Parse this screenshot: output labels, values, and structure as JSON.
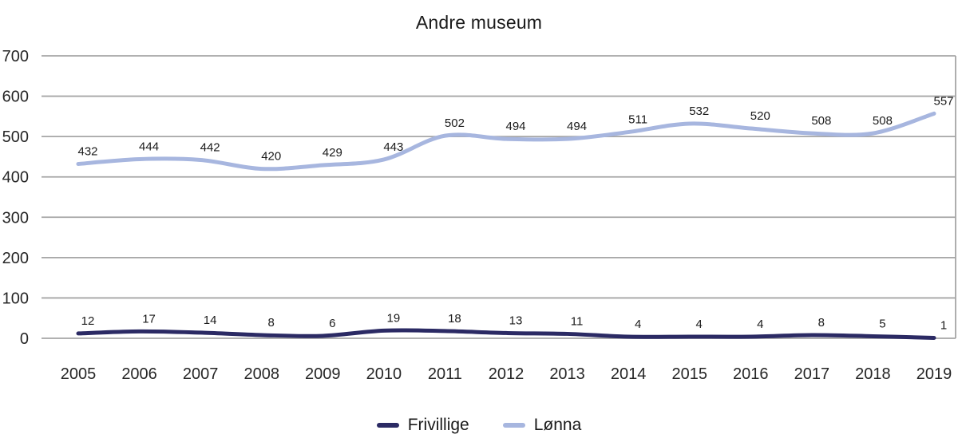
{
  "chart_data": {
    "type": "line",
    "title": "Andre museum",
    "categories": [
      "2005",
      "2006",
      "2007",
      "2008",
      "2009",
      "2010",
      "2011",
      "2012",
      "2013",
      "2014",
      "2015",
      "2016",
      "2017",
      "2018",
      "2019"
    ],
    "series": [
      {
        "name": "Frivillige",
        "color": "#2B2A64",
        "values": [
          12,
          17,
          14,
          8,
          6,
          19,
          18,
          13,
          11,
          4,
          4,
          4,
          8,
          5,
          1
        ]
      },
      {
        "name": "Lønna",
        "color": "#A7B6DF",
        "values": [
          432,
          444,
          442,
          420,
          429,
          443,
          502,
          494,
          494,
          511,
          532,
          520,
          508,
          508,
          557
        ]
      }
    ],
    "xlabel": "",
    "ylabel": "",
    "ylim": [
      0,
      700
    ],
    "yticks": [
      0,
      100,
      200,
      300,
      400,
      500,
      600,
      700
    ],
    "grid": true,
    "gridline_color": "#A6A6A6",
    "text_color": "#1A1A1A",
    "legend_position": "bottom",
    "data_labels": true
  }
}
